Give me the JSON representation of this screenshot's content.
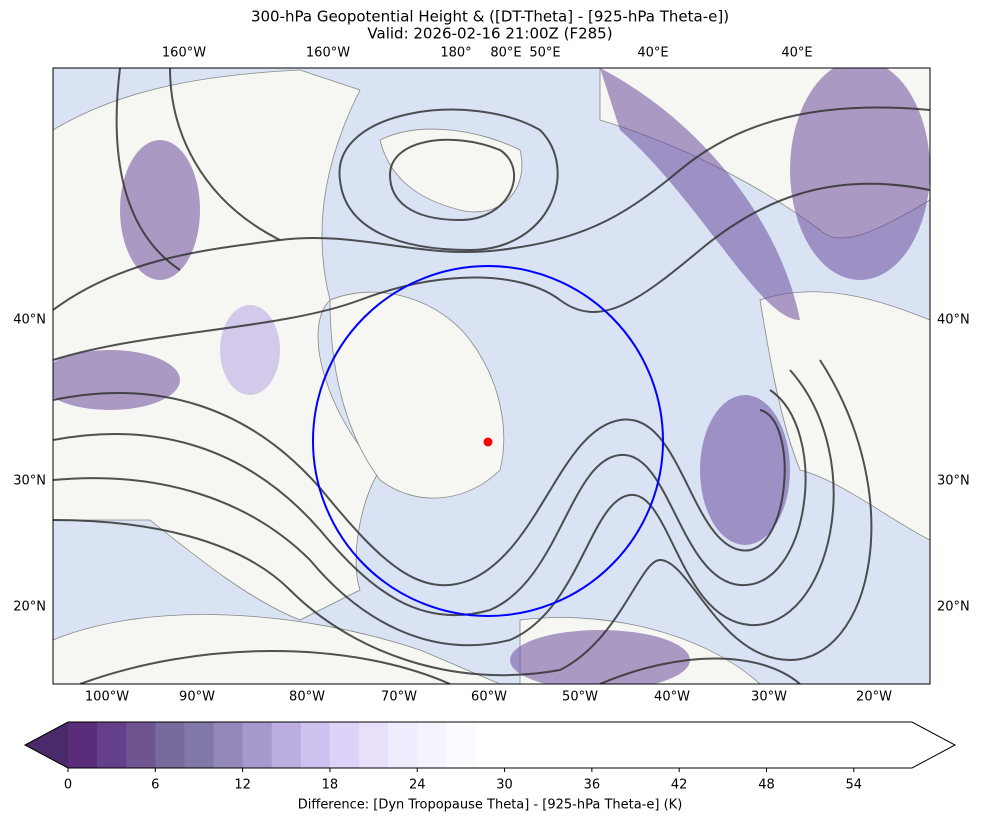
{
  "title": [
    "300-hPa Geopotential Height & ([DT-Theta] - [925-hPa Theta-e])",
    "Valid: 2026-02-16 21:00Z (F285)"
  ],
  "top_labels": [
    "160°W",
    "160°W",
    "180°",
    "80°E",
    "50°E",
    "40°E",
    "40°E"
  ],
  "bottom_labels": [
    "100°W",
    "90°W",
    "80°W",
    "70°W",
    "60°W",
    "50°W",
    "40°W",
    "30°W",
    "20°W"
  ],
  "left_labels": [
    "40°N",
    "30°N",
    "20°N"
  ],
  "right_labels": [
    "40°N",
    "30°N",
    "20°N"
  ],
  "colorbar": {
    "range": [
      0,
      58
    ],
    "ticks": [
      0,
      6,
      12,
      18,
      24,
      30,
      36,
      42,
      48,
      54
    ],
    "label": "Difference: [Dyn Tropopause Theta] - [925-hPa Theta-e] (K)",
    "under_color": "#4a2a6a",
    "over_color": "#ffffff",
    "colors": [
      "#5a2d7a",
      "#65408a",
      "#6f5590",
      "#786a9a",
      "#8278a8",
      "#9488ba",
      "#a899cc",
      "#bcaee0",
      "#cfc2f0",
      "#ddd2f8",
      "#e8e0fb",
      "#f0ebfd",
      "#f6f3fe",
      "#fbfaff",
      "#ffffff",
      "#ffffff",
      "#ffffff",
      "#ffffff",
      "#ffffff",
      "#ffffff",
      "#ffffff",
      "#ffffff",
      "#ffffff",
      "#ffffff",
      "#ffffff",
      "#ffffff",
      "#ffffff",
      "#ffffff",
      "#ffffff"
    ]
  }
}
